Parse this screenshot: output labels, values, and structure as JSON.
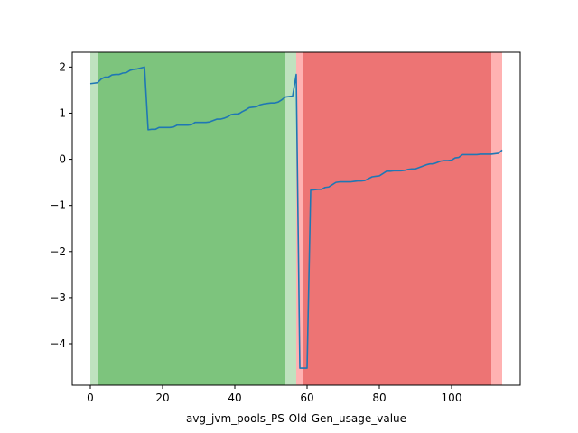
{
  "chart_data": {
    "type": "line",
    "title": "",
    "xlabel": "avg_jvm_pools_PS-Old-Gen_usage_value",
    "ylabel": "",
    "xlim": [
      -5,
      119
    ],
    "ylim": [
      -4.9,
      2.32
    ],
    "grid": false,
    "x_ticks": [
      0,
      20,
      40,
      60,
      80,
      100
    ],
    "y_ticks": [
      -4,
      -3,
      -2,
      -1,
      0,
      1,
      2
    ],
    "series_color": "#1f77b4",
    "shaded_regions": [
      {
        "x0": 0,
        "x1": 57,
        "color": "#2ca02c",
        "alpha": 0.3
      },
      {
        "x0": 2,
        "x1": 54,
        "color": "#2ca02c",
        "alpha": 0.45
      },
      {
        "x0": 57,
        "x1": 114,
        "color": "#ff0000",
        "alpha": 0.3
      },
      {
        "x0": 59,
        "x1": 111,
        "color": "#d62728",
        "alpha": 0.45
      }
    ],
    "series": [
      {
        "x": [
          0,
          1,
          2,
          3,
          4,
          5,
          6,
          7,
          8,
          9,
          10,
          11,
          12,
          13,
          14,
          15,
          16,
          17,
          18,
          19,
          20,
          21,
          22,
          23,
          24,
          25,
          26,
          27,
          28,
          29,
          30,
          31,
          32,
          33,
          34,
          35,
          36,
          37,
          38,
          39,
          40,
          41,
          42,
          43,
          44,
          45,
          46,
          47,
          48,
          49,
          50,
          51,
          52,
          53,
          54,
          55,
          56,
          57,
          58,
          59,
          60,
          61,
          62,
          63,
          64,
          65,
          66,
          67,
          68,
          69,
          70,
          71,
          72,
          73,
          74,
          75,
          76,
          77,
          78,
          79,
          80,
          81,
          82,
          83,
          84,
          85,
          86,
          87,
          88,
          89,
          90,
          91,
          92,
          93,
          94,
          95,
          96,
          97,
          98,
          99,
          100,
          101,
          102,
          103,
          104,
          105,
          106,
          107,
          108,
          109,
          110,
          111,
          112,
          113,
          114
        ],
        "y": [
          1.64,
          1.65,
          1.66,
          1.74,
          1.78,
          1.78,
          1.83,
          1.84,
          1.84,
          1.87,
          1.88,
          1.93,
          1.95,
          1.96,
          1.98,
          2.0,
          0.64,
          0.65,
          0.65,
          0.69,
          0.69,
          0.69,
          0.69,
          0.7,
          0.74,
          0.74,
          0.74,
          0.74,
          0.75,
          0.8,
          0.8,
          0.8,
          0.8,
          0.81,
          0.84,
          0.87,
          0.87,
          0.89,
          0.92,
          0.97,
          0.98,
          0.98,
          1.03,
          1.07,
          1.12,
          1.13,
          1.14,
          1.18,
          1.2,
          1.21,
          1.22,
          1.22,
          1.24,
          1.29,
          1.35,
          1.36,
          1.37,
          1.84,
          -4.53,
          -4.53,
          -4.53,
          -0.67,
          -0.66,
          -0.65,
          -0.65,
          -0.61,
          -0.6,
          -0.55,
          -0.5,
          -0.49,
          -0.49,
          -0.49,
          -0.49,
          -0.48,
          -0.47,
          -0.47,
          -0.46,
          -0.42,
          -0.38,
          -0.37,
          -0.36,
          -0.31,
          -0.26,
          -0.26,
          -0.25,
          -0.25,
          -0.25,
          -0.24,
          -0.22,
          -0.21,
          -0.21,
          -0.18,
          -0.15,
          -0.12,
          -0.1,
          -0.1,
          -0.07,
          -0.04,
          -0.03,
          -0.03,
          -0.02,
          0.03,
          0.04,
          0.1,
          0.1,
          0.1,
          0.1,
          0.1,
          0.11,
          0.11,
          0.11,
          0.11,
          0.12,
          0.13,
          0.2
        ]
      }
    ]
  }
}
